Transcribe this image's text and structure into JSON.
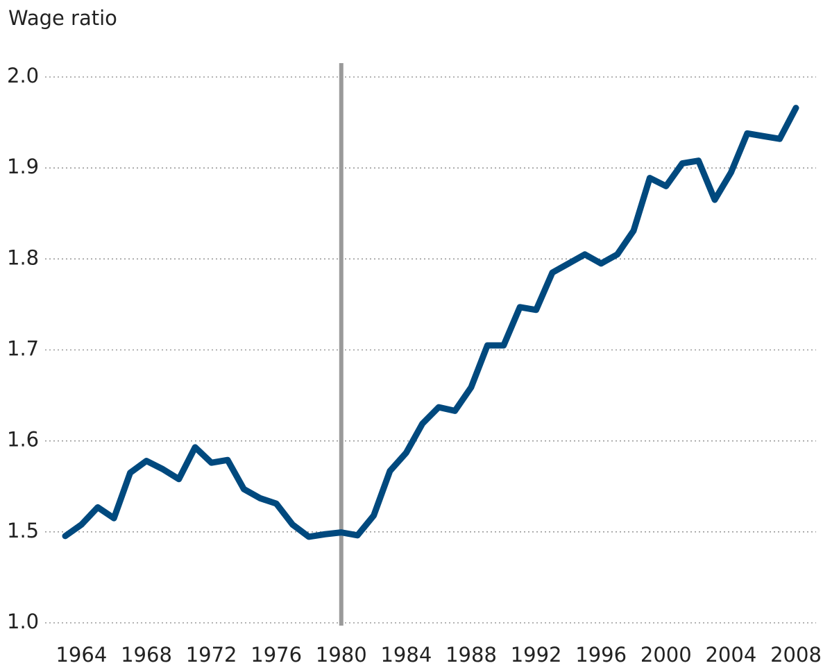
{
  "chart_data": {
    "type": "line",
    "title": "Wage ratio",
    "x": [
      1963,
      1964,
      1965,
      1966,
      1967,
      1968,
      1969,
      1970,
      1971,
      1972,
      1973,
      1974,
      1975,
      1976,
      1977,
      1978,
      1979,
      1980,
      1981,
      1982,
      1983,
      1984,
      1985,
      1986,
      1987,
      1988,
      1989,
      1990,
      1991,
      1992,
      1993,
      1994,
      1995,
      1996,
      1997,
      1998,
      1999,
      2000,
      2001,
      2002,
      2003,
      2004,
      2005,
      2006,
      2007,
      2008
    ],
    "series": [
      {
        "name": "Wage ratio",
        "color": "#00497e",
        "values": [
          1.477,
          1.508,
          1.527,
          1.515,
          1.565,
          1.578,
          1.569,
          1.558,
          1.593,
          1.576,
          1.579,
          1.547,
          1.537,
          1.531,
          1.508,
          1.473,
          1.487,
          1.497,
          1.481,
          1.518,
          1.567,
          1.587,
          1.619,
          1.637,
          1.633,
          1.659,
          1.705,
          1.705,
          1.747,
          1.744,
          1.785,
          1.795,
          1.805,
          1.795,
          1.805,
          1.831,
          1.889,
          1.88,
          1.905,
          1.908,
          1.865,
          1.895,
          1.938,
          1.935,
          1.932,
          1.966
        ]
      }
    ],
    "xlim": [
      1963,
      2008
    ],
    "xticks": [
      1964,
      1968,
      1972,
      1976,
      1980,
      1984,
      1988,
      1992,
      1996,
      2000,
      2004,
      2008
    ],
    "ylim": [
      1.0,
      2.0
    ],
    "yticks": [
      {
        "value": 1,
        "label": "1.0"
      },
      1.5,
      1.6,
      1.7,
      1.8,
      1.9,
      {
        "value": 2,
        "label": "2.0"
      }
    ],
    "y_break": true,
    "vline": 1980,
    "vline_color": "#9a9a9a",
    "grid": true
  }
}
